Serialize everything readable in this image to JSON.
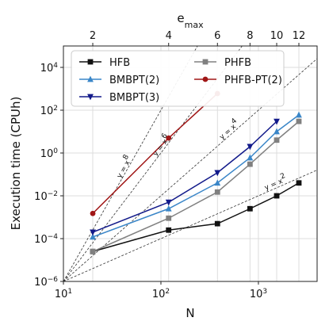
{
  "chart_data": {
    "type": "line",
    "xscale": "log",
    "yscale": "log",
    "xlabel": "N",
    "ylabel": "Execution time (CPUh)",
    "top_xlabel": "e_max",
    "xlim": [
      10,
      4000
    ],
    "ylim": [
      1e-06,
      100000
    ],
    "xticks": [
      {
        "value": 10,
        "base": "10",
        "exp": "1"
      },
      {
        "value": 100,
        "base": "10",
        "exp": "2"
      },
      {
        "value": 1000,
        "base": "10",
        "exp": "3"
      }
    ],
    "yticks": [
      {
        "value": 1e-06,
        "base": "10",
        "exp": "−6"
      },
      {
        "value": 0.0001,
        "base": "10",
        "exp": "−4"
      },
      {
        "value": 0.01,
        "base": "10",
        "exp": "−2"
      },
      {
        "value": 1,
        "base": "10",
        "exp": "0"
      },
      {
        "value": 100,
        "base": "10",
        "exp": "2"
      },
      {
        "value": 10000,
        "base": "10",
        "exp": "4"
      }
    ],
    "top_ticks": [
      {
        "label": "2",
        "N": 20
      },
      {
        "label": "4",
        "N": 120
      },
      {
        "label": "6",
        "N": 380
      },
      {
        "label": "8",
        "N": 820
      },
      {
        "label": "10",
        "N": 1540
      },
      {
        "label": "12",
        "N": 2600
      }
    ],
    "grid": true,
    "legend_position": "top",
    "series": [
      {
        "name": "HFB",
        "color": "#111111",
        "marker": "square",
        "x": [
          20,
          120,
          380,
          820,
          1540,
          2600
        ],
        "y": [
          2.5e-05,
          0.00025,
          0.0005,
          0.0025,
          0.01,
          0.04
        ]
      },
      {
        "name": "PHFB",
        "color": "#808080",
        "marker": "square",
        "x": [
          20,
          120,
          380,
          820,
          1540,
          2600
        ],
        "y": [
          2.5e-05,
          0.0009,
          0.015,
          0.3,
          4,
          30
        ]
      },
      {
        "name": "BMBPT(2)",
        "color": "#3a86c8",
        "marker": "triangle-up",
        "x": [
          20,
          120,
          380,
          820,
          1540,
          2600
        ],
        "y": [
          0.00012,
          0.0025,
          0.04,
          0.6,
          10,
          60
        ]
      },
      {
        "name": "PHFB-PT(2)",
        "color": "#a01616",
        "marker": "circle",
        "x": [
          20,
          120,
          380
        ],
        "y": [
          0.0015,
          5,
          600
        ]
      },
      {
        "name": "BMBPT(3)",
        "color": "#121a8a",
        "marker": "triangle-down",
        "x": [
          20,
          120,
          380,
          820,
          1540
        ],
        "y": [
          0.0002,
          0.005,
          0.12,
          2,
          30
        ]
      }
    ],
    "reference_lines": [
      {
        "label": "y = x",
        "exp": "8",
        "power": 8
      },
      {
        "label": "y = x",
        "exp": "6",
        "power": 6
      },
      {
        "label": "y = x",
        "exp": "4",
        "power": 4
      },
      {
        "label": "y = x",
        "exp": "2",
        "power": 2
      }
    ]
  }
}
